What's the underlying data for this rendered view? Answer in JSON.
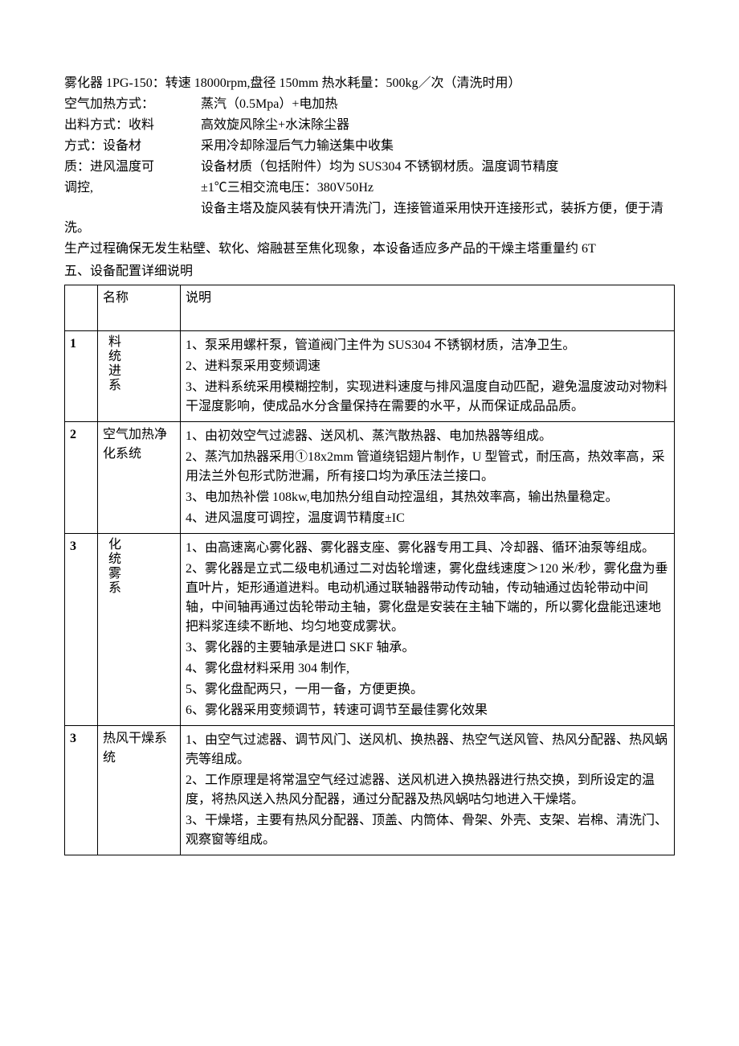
{
  "spec_title": "雾化器 1PG-150：转速 18000rpm,盘径 150mm 热水耗量：500kg／次（清洗时用）",
  "specs": [
    {
      "label": "空气加热方式：",
      "value": "蒸汽（0.5Mpa）+电加热"
    },
    {
      "label": "出料方式：收料",
      "value": "高效旋风除尘+水沫除尘器"
    },
    {
      "label": "方式：设备材",
      "value": "采用冷却除湿后气力输送集中收集"
    },
    {
      "label": "质：进风温度可",
      "value": "设备材质（包括附件）均为 SUS304 不锈钢材质。温度调节精度"
    },
    {
      "label": "调控,",
      "value": "±1℃三相交流电压：380V50Hz"
    }
  ],
  "tail_line": "设备主塔及旋风装有快开清洗门，连接管道采用快开连接形式，装拆方便，便于清洗。",
  "para2": "生产过程确保无发生粘壁、软化、熔融甚至焦化现象，本设备适应多产品的干燥主塔重量约 6T",
  "section_title": "五、设备配置详细说明",
  "table": {
    "header": {
      "name": "名称",
      "desc": "说明"
    },
    "rows": [
      {
        "num": "1",
        "name": "料统进系",
        "name_vertical": true,
        "desc": [
          "1、泵采用螺杆泵，管道阀门主件为 SUS304 不锈钢材质，洁净卫生。",
          "2、进料泵采用变频调速",
          "3、进料系统采用模糊控制，实现进料速度与排风温度自动匹配，避免温度波动对物料干湿度影响，使成品水分含量保持在需要的水平，从而保证成品品质。"
        ]
      },
      {
        "num": "2",
        "name": "空气加热净化系统",
        "name_vertical": false,
        "desc": [
          "1、由初效空气过滤器、送风机、蒸汽散热器、电加热器等组成。",
          "2、蒸汽加热器采用①18x2mm 管道绕铝翅片制作，U 型管式，耐压高，热效率高，采用法兰外包形式防泄漏，所有接口均为承压法兰接口。",
          "3、电加热补偿 108kw,电加热分组自动控温组，其热效率高，输出热量稳定。",
          "4、进风温度可调控，温度调节精度±IC"
        ]
      },
      {
        "num": "3",
        "name": "化统雾系",
        "name_vertical": true,
        "desc": [
          "1、由高速离心雾化器、雾化器支座、雾化器专用工具、冷却器、循环油泵等组成。",
          "2、雾化器是立式二级电机通过二对齿轮增速，雾化盘线速度＞120 米/秒，雾化盘为垂直叶片，矩形通道进料。电动机通过联轴器带动传动轴，传动轴通过齿轮带动中间轴，中间轴再通过齿轮带动主轴，雾化盘是安装在主轴下端的，所以雾化盘能迅速地把料浆连续不断地、均匀地变成雾状。",
          "3、雾化器的主要轴承是进口 SKF 轴承。",
          "4、雾化盘材料采用 304 制作,",
          "5、雾化盘配两只，一用一备，方便更换。",
          "6、雾化器采用变频调节，转速可调节至最佳雾化效果"
        ]
      },
      {
        "num": "3",
        "name": "热风干燥系统",
        "name_vertical": false,
        "desc": [
          "1、由空气过滤器、调节风门、送风机、换热器、热空气送风管、热风分配器、热风蜗壳等组成。",
          "2、工作原理是将常温空气经过滤器、送风机进入换热器进行热交换，到所设定的温度，将热风送入热风分配器，通过分配器及热风蜗咕匀地进入干燥塔。",
          "3、干燥塔，主要有热风分配器、顶盖、内筒体、骨架、外壳、支架、岩棉、清洗门、观察窗等组成。"
        ]
      }
    ]
  }
}
